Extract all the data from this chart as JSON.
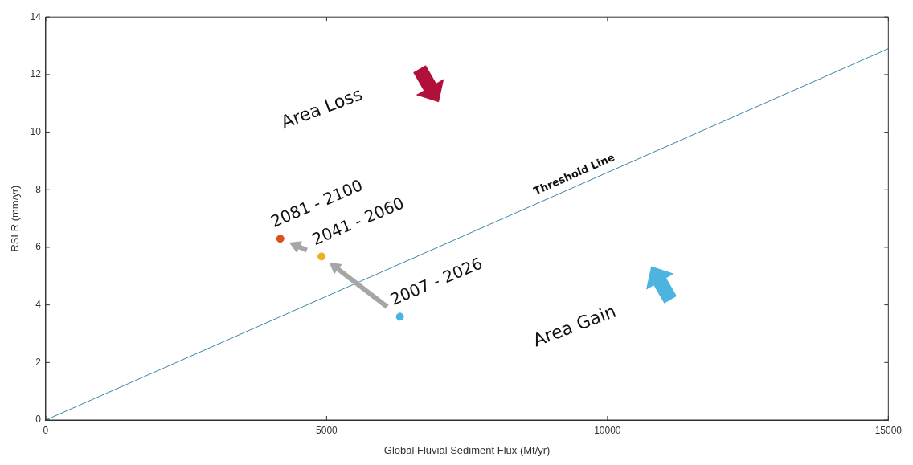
{
  "chart_data": {
    "type": "scatter",
    "xlabel": "Global Fluvial Sediment Flux (Mt/yr)",
    "ylabel": "RSLR (mm/yr)",
    "xlim": [
      0,
      15000
    ],
    "xticks": [
      0,
      5000,
      10000,
      15000
    ],
    "ylim": [
      0,
      14
    ],
    "yticks": [
      0,
      2,
      4,
      6,
      8,
      10,
      12,
      14
    ],
    "grid": false,
    "legend": false,
    "series": [
      {
        "name": "Threshold Line",
        "type": "line",
        "color": "#3a86a8",
        "x": [
          0,
          15000
        ],
        "values": [
          0,
          12.9
        ]
      },
      {
        "marker": "circle",
        "x": [
          6305,
          4910,
          4175
        ],
        "values": [
          3.59,
          5.68,
          6.3
        ],
        "colors": [
          "#4db3e0",
          "#edb120",
          "#d95319"
        ]
      }
    ],
    "annotations": [
      {
        "text": "2007 - 2026",
        "x": 6305,
        "y": 3.59
      },
      {
        "text": "2041 - 2060",
        "x": 4910,
        "y": 5.68
      },
      {
        "text": "2081 - 2100",
        "x": 4175,
        "y": 6.3
      },
      "Area Loss",
      "Area Gain"
    ]
  }
}
